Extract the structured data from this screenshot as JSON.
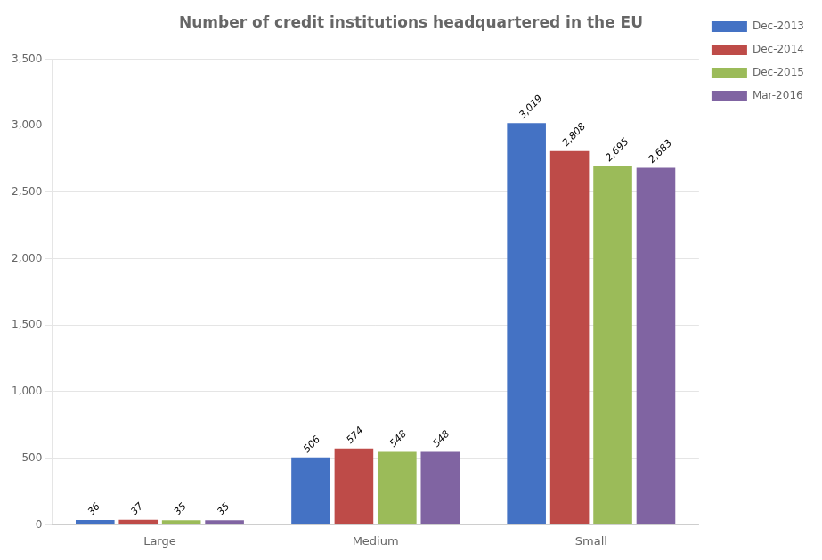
{
  "chart_data": {
    "type": "bar",
    "title": "Number of credit institutions headquartered in the EU",
    "categories": [
      "Large",
      "Medium",
      "Small"
    ],
    "series": [
      {
        "name": "Dec-2013",
        "color": "#4472C4",
        "values": [
          36,
          506,
          3019
        ],
        "value_labels": [
          "36",
          "506",
          "3,019"
        ]
      },
      {
        "name": "Dec-2014",
        "color": "#BE4B48",
        "values": [
          37,
          574,
          2808
        ],
        "value_labels": [
          "37",
          "574",
          "2,808"
        ]
      },
      {
        "name": "Dec-2015",
        "color": "#9BBB59",
        "values": [
          35,
          548,
          2695
        ],
        "value_labels": [
          "35",
          "548",
          "2,695"
        ]
      },
      {
        "name": "Mar-2016",
        "color": "#8064A2",
        "values": [
          35,
          548,
          2683
        ],
        "value_labels": [
          "35",
          "548",
          "2,683"
        ]
      }
    ],
    "ylim": [
      0,
      3500
    ],
    "yticks": [
      0,
      500,
      {
        "value": 1000,
        "label": "1,000"
      },
      {
        "value": 1500,
        "label": "1,500"
      },
      {
        "value": 2000,
        "label": "2,000"
      },
      {
        "value": 2500,
        "label": "2,500"
      },
      {
        "value": 3000,
        "label": "3,000"
      },
      {
        "value": 3500,
        "label": "3,500"
      }
    ],
    "grid": true,
    "legend": "right",
    "data_labels": true
  }
}
